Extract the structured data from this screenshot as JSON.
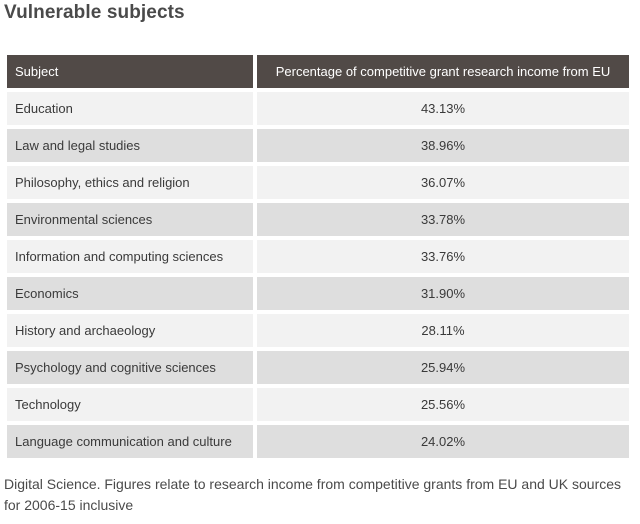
{
  "title": "Vulnerable subjects",
  "table": {
    "headers": [
      "Subject",
      "Percentage of competitive grant research income from EU"
    ],
    "rows": [
      {
        "subject": "Education",
        "percentage": "43.13%"
      },
      {
        "subject": "Law and legal studies",
        "percentage": "38.96%"
      },
      {
        "subject": "Philosophy, ethics and religion",
        "percentage": "36.07%"
      },
      {
        "subject": "Environmental sciences",
        "percentage": "33.78%"
      },
      {
        "subject": "Information and computing sciences",
        "percentage": "33.76%"
      },
      {
        "subject": "Economics",
        "percentage": "31.90%"
      },
      {
        "subject": "History and archaeology",
        "percentage": "28.11%"
      },
      {
        "subject": "Psychology and cognitive sciences",
        "percentage": "25.94%"
      },
      {
        "subject": "Technology",
        "percentage": "25.56%"
      },
      {
        "subject": "Language communication and culture",
        "percentage": "24.02%"
      }
    ]
  },
  "caption": "Digital Science. Figures relate to research income from competitive grants from EU and UK sources for 2006-15 inclusive",
  "colors": {
    "header_bg": "#514a47",
    "row_light": "#f2f2f2",
    "row_dark": "#dedede"
  }
}
